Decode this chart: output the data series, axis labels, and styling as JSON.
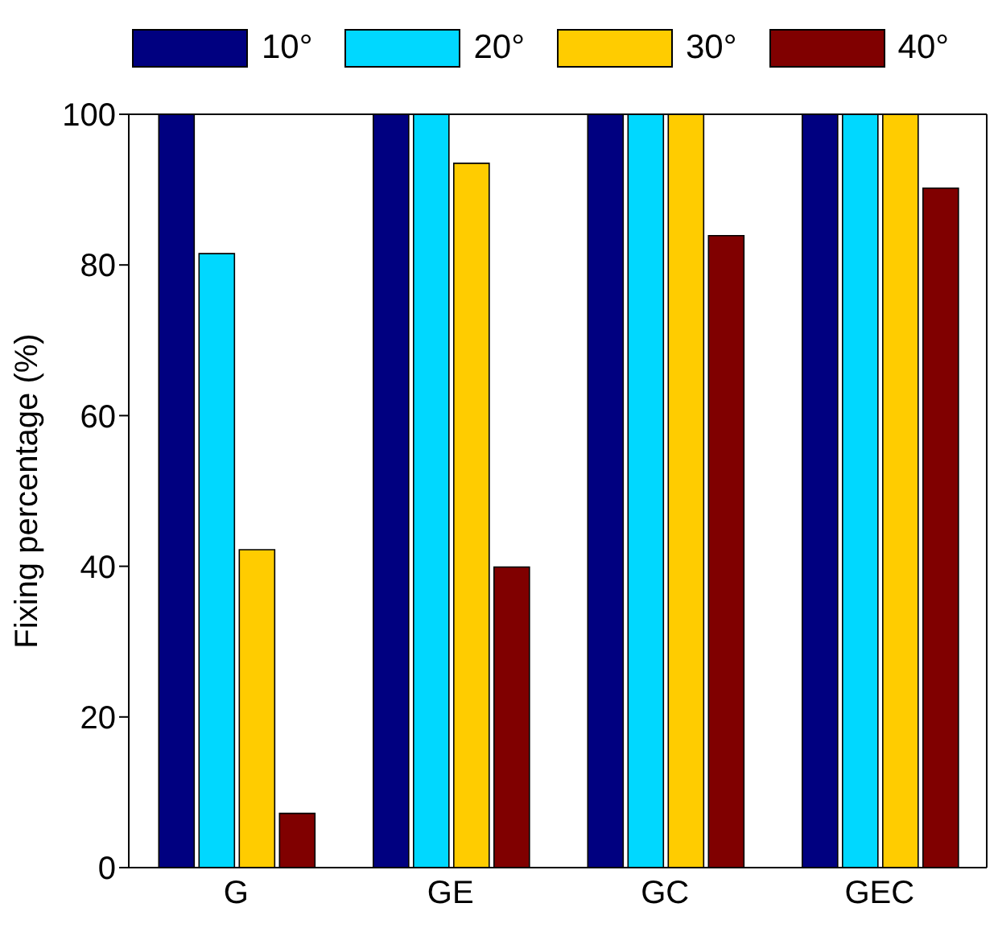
{
  "chart_data": {
    "type": "bar",
    "ylabel": "Fixing percentage (%)",
    "categories": [
      "G",
      "GE",
      "GC",
      "GEC"
    ],
    "series": [
      {
        "name": "10°",
        "color": "#000080",
        "values": [
          100,
          100,
          100,
          100
        ]
      },
      {
        "name": "20°",
        "color": "#00d8ff",
        "values": [
          81.5,
          100,
          100,
          100
        ]
      },
      {
        "name": "30°",
        "color": "#ffcc00",
        "values": [
          42.2,
          93.5,
          100,
          100
        ]
      },
      {
        "name": "40°",
        "color": "#800000",
        "values": [
          7.2,
          39.9,
          83.9,
          90.2
        ]
      }
    ],
    "ylim": [
      0,
      100
    ],
    "yticks": [
      0,
      20,
      40,
      60,
      80,
      100
    ],
    "grid": false,
    "legend": "top"
  }
}
